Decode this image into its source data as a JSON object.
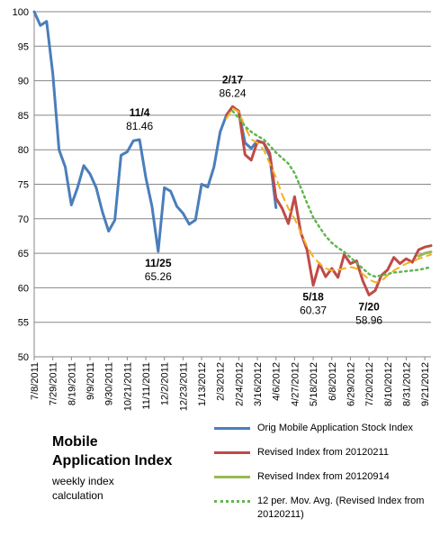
{
  "chart_data": {
    "type": "line",
    "title": "Mobile Application Index",
    "subtitle": "weekly index calculation",
    "xlabel": "",
    "ylabel": "",
    "ylim": [
      50,
      100
    ],
    "yticks": [
      50,
      55,
      60,
      65,
      70,
      75,
      80,
      85,
      90,
      95,
      100
    ],
    "grid": "horizontal",
    "legend_position": "bottom-right",
    "week_start": "7/8/2011",
    "xtick_labels": [
      "7/8/2011",
      "7/29/2011",
      "8/19/2011",
      "9/9/2011",
      "9/30/2011",
      "10/21/2011",
      "11/11/2011",
      "12/2/2011",
      "12/23/2011",
      "1/13/2012",
      "2/3/2012",
      "2/24/2012",
      "3/16/2012",
      "4/6/2012",
      "4/27/2012",
      "5/18/2012",
      "6/8/2012",
      "6/29/2012",
      "7/20/2012",
      "8/10/2012",
      "8/31/2012",
      "9/21/2012"
    ],
    "series": [
      {
        "name": "Orig Mobile Application Stock Index",
        "color": "#4a7ebb",
        "dash": "solid",
        "x": [
          "7/8/2011",
          "7/15/2011",
          "7/22/2011",
          "7/29/2011",
          "8/5/2011",
          "8/12/2011",
          "8/19/2011",
          "8/26/2011",
          "9/2/2011",
          "9/9/2011",
          "9/16/2011",
          "9/23/2011",
          "9/30/2011",
          "10/7/2011",
          "10/14/2011",
          "10/21/2011",
          "10/28/2011",
          "11/4/2011",
          "11/11/2011",
          "11/18/2011",
          "11/25/2011",
          "12/2/2011",
          "12/9/2011",
          "12/16/2011",
          "12/23/2011",
          "12/30/2011",
          "1/6/2012",
          "1/13/2012",
          "1/20/2012",
          "1/27/2012",
          "2/3/2012",
          "2/10/2012",
          "2/17/2012",
          "2/24/2012",
          "3/2/2012",
          "3/9/2012",
          "3/16/2012",
          "3/23/2012",
          "3/30/2012",
          "4/6/2012"
        ],
        "values": [
          100.0,
          98.0,
          98.6,
          91.0,
          80.0,
          77.5,
          72.0,
          74.5,
          77.7,
          76.5,
          74.5,
          71.0,
          68.2,
          69.8,
          79.2,
          79.7,
          81.3,
          81.46,
          76.0,
          71.8,
          65.26,
          74.5,
          74.0,
          71.8,
          70.8,
          69.2,
          69.8,
          75.0,
          74.6,
          77.5,
          82.6,
          85.0,
          86.24,
          85.5,
          81.0,
          80.2,
          81.3,
          81.0,
          79.0,
          71.6
        ]
      },
      {
        "name": "Revised Index from 20120211",
        "color": "#be4b48",
        "dash": "solid",
        "x": [
          "2/10/2012",
          "2/17/2012",
          "2/24/2012",
          "3/2/2012",
          "3/9/2012",
          "3/16/2012",
          "3/23/2012",
          "3/30/2012",
          "4/6/2012",
          "4/13/2012",
          "4/20/2012",
          "4/27/2012",
          "5/4/2012",
          "5/11/2012",
          "5/18/2012",
          "5/25/2012",
          "6/1/2012",
          "6/8/2012",
          "6/15/2012",
          "6/22/2012",
          "6/29/2012",
          "7/6/2012",
          "7/13/2012",
          "7/20/2012",
          "7/27/2012",
          "8/3/2012",
          "8/10/2012",
          "8/17/2012",
          "8/24/2012",
          "8/31/2012",
          "9/7/2012",
          "9/14/2012",
          "9/21/2012",
          "9/28/2012"
        ],
        "values": [
          85.0,
          86.24,
          85.6,
          79.3,
          78.5,
          81.2,
          81.0,
          79.5,
          73.0,
          71.5,
          69.3,
          73.2,
          68.0,
          65.5,
          60.37,
          63.5,
          61.6,
          62.8,
          61.5,
          64.8,
          63.5,
          63.9,
          61.0,
          58.96,
          59.6,
          61.8,
          62.6,
          64.4,
          63.5,
          64.2,
          63.7,
          65.5,
          65.9,
          66.1
        ]
      },
      {
        "name": "Revised Index from 20120914",
        "color": "#98b954",
        "dash": "solid",
        "x": [
          "9/14/2012",
          "9/21/2012",
          "9/28/2012"
        ],
        "values": [
          64.6,
          65.0,
          65.2
        ]
      },
      {
        "name": "",
        "color": "#f5b11e",
        "dash": "dashed",
        "x": [
          "2/10/2012",
          "2/17/2012",
          "2/24/2012",
          "3/2/2012",
          "3/9/2012",
          "3/16/2012",
          "3/23/2012",
          "3/30/2012",
          "4/6/2012",
          "4/13/2012",
          "4/20/2012",
          "4/27/2012",
          "5/4/2012",
          "5/11/2012",
          "5/18/2012",
          "5/25/2012",
          "6/1/2012",
          "6/8/2012",
          "6/15/2012",
          "6/22/2012",
          "6/29/2012",
          "7/6/2012",
          "7/13/2012",
          "7/20/2012",
          "7/27/2012",
          "8/3/2012",
          "8/10/2012",
          "8/17/2012",
          "8/24/2012",
          "8/31/2012",
          "9/7/2012",
          "9/14/2012",
          "9/21/2012",
          "9/28/2012"
        ],
        "values": [
          84.5,
          86.0,
          85.5,
          83.3,
          81.5,
          81.0,
          80.0,
          78.0,
          76.0,
          73.5,
          71.5,
          70.0,
          68.0,
          66.0,
          64.5,
          63.5,
          62.8,
          62.5,
          62.6,
          62.8,
          63.0,
          62.8,
          62.0,
          61.2,
          60.8,
          61.0,
          61.8,
          62.5,
          63.0,
          63.5,
          63.8,
          64.2,
          64.5,
          64.8
        ]
      },
      {
        "name": "12 per. Mov. Avg. (Revised Index from 20120211)",
        "color": "#62b550",
        "dash": "dotted",
        "x": [
          "2/17/2012",
          "2/24/2012",
          "3/2/2012",
          "3/9/2012",
          "3/16/2012",
          "3/23/2012",
          "3/30/2012",
          "4/6/2012",
          "4/13/2012",
          "4/20/2012",
          "4/27/2012",
          "5/4/2012",
          "5/11/2012",
          "5/18/2012",
          "5/25/2012",
          "6/1/2012",
          "6/8/2012",
          "6/15/2012",
          "6/22/2012",
          "6/29/2012",
          "7/6/2012",
          "7/13/2012",
          "7/20/2012",
          "7/27/2012",
          "8/3/2012",
          "8/10/2012",
          "8/17/2012",
          "8/24/2012",
          "8/31/2012",
          "9/7/2012",
          "9/14/2012",
          "9/21/2012",
          "9/28/2012"
        ],
        "values": [
          85.6,
          84.6,
          83.4,
          82.6,
          82.0,
          81.5,
          80.6,
          79.6,
          78.8,
          78.0,
          76.6,
          74.5,
          72.3,
          70.2,
          68.8,
          67.5,
          66.5,
          65.8,
          65.2,
          64.4,
          63.6,
          62.8,
          62.0,
          61.6,
          61.8,
          62.0,
          62.2,
          62.3,
          62.4,
          62.5,
          62.6,
          62.8,
          63.0
        ]
      }
    ],
    "annotations": [
      {
        "date": "11/4/2011",
        "value": 81.46,
        "date_text": "11/4",
        "value_text": "81.46",
        "position": "above"
      },
      {
        "date": "11/25/2011",
        "value": 65.26,
        "date_text": "11/25",
        "value_text": "65.26",
        "position": "below"
      },
      {
        "date": "2/17/2012",
        "value": 86.24,
        "date_text": "2/17",
        "value_text": "86.24",
        "position": "above"
      },
      {
        "date": "5/18/2012",
        "value": 60.37,
        "date_text": "5/18",
        "value_text": "60.37",
        "position": "below"
      },
      {
        "date": "7/20/2012",
        "value": 58.96,
        "date_text": "7/20",
        "value_text": "58.96",
        "position": "below"
      }
    ]
  },
  "caption": {
    "title_line1": "Mobile",
    "title_line2": "Application Index",
    "subtitle_line1": "weekly index",
    "subtitle_line2": "calculation"
  },
  "legend": [
    {
      "label": "Orig Mobile Application Stock Index",
      "color": "#4a7ebb",
      "style": "solid"
    },
    {
      "label": "Revised Index from 20120211",
      "color": "#be4b48",
      "style": "solid"
    },
    {
      "label": "Revised Index from 20120914",
      "color": "#98b954",
      "style": "solid"
    },
    {
      "label": "12 per. Mov. Avg. (Revised Index from 20120211)",
      "color": "#62b550",
      "style": "dotted"
    }
  ]
}
